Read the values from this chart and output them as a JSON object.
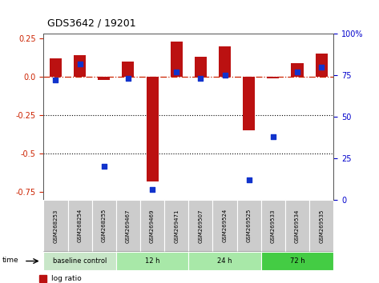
{
  "title": "GDS3642 / 19201",
  "samples": [
    "GSM268253",
    "GSM268254",
    "GSM268255",
    "GSM269467",
    "GSM269469",
    "GSM269471",
    "GSM269507",
    "GSM269524",
    "GSM269525",
    "GSM269533",
    "GSM269534",
    "GSM269535"
  ],
  "log_ratio": [
    0.12,
    0.14,
    -0.02,
    0.1,
    -0.68,
    0.23,
    0.13,
    0.2,
    -0.35,
    -0.01,
    0.09,
    0.15
  ],
  "percentile_rank": [
    72,
    82,
    20,
    73,
    6,
    77,
    73,
    75,
    12,
    38,
    77,
    80
  ],
  "group_info": [
    {
      "label": "baseline control",
      "start": 0,
      "end": 3,
      "color": "#c8e6c8"
    },
    {
      "label": "12 h",
      "start": 3,
      "end": 6,
      "color": "#a8e8a8"
    },
    {
      "label": "24 h",
      "start": 6,
      "end": 9,
      "color": "#a8e8a8"
    },
    {
      "label": "72 h",
      "start": 9,
      "end": 12,
      "color": "#44cc44"
    }
  ],
  "ylim_left": [
    -0.8,
    0.28
  ],
  "ylim_right": [
    0,
    100
  ],
  "y_ticks_left": [
    0.25,
    0.0,
    -0.25,
    -0.5,
    -0.75
  ],
  "y_ticks_right": [
    100,
    75,
    50,
    25,
    0
  ],
  "bar_color": "#bb1111",
  "dot_color": "#1133cc",
  "bar_width": 0.5,
  "dot_size": 18,
  "label_bg": "#cccccc",
  "left_axis_color": "#cc2200",
  "right_axis_color": "#0000cc",
  "zero_line_color": "#cc2200",
  "dot_line_color": "#000000"
}
